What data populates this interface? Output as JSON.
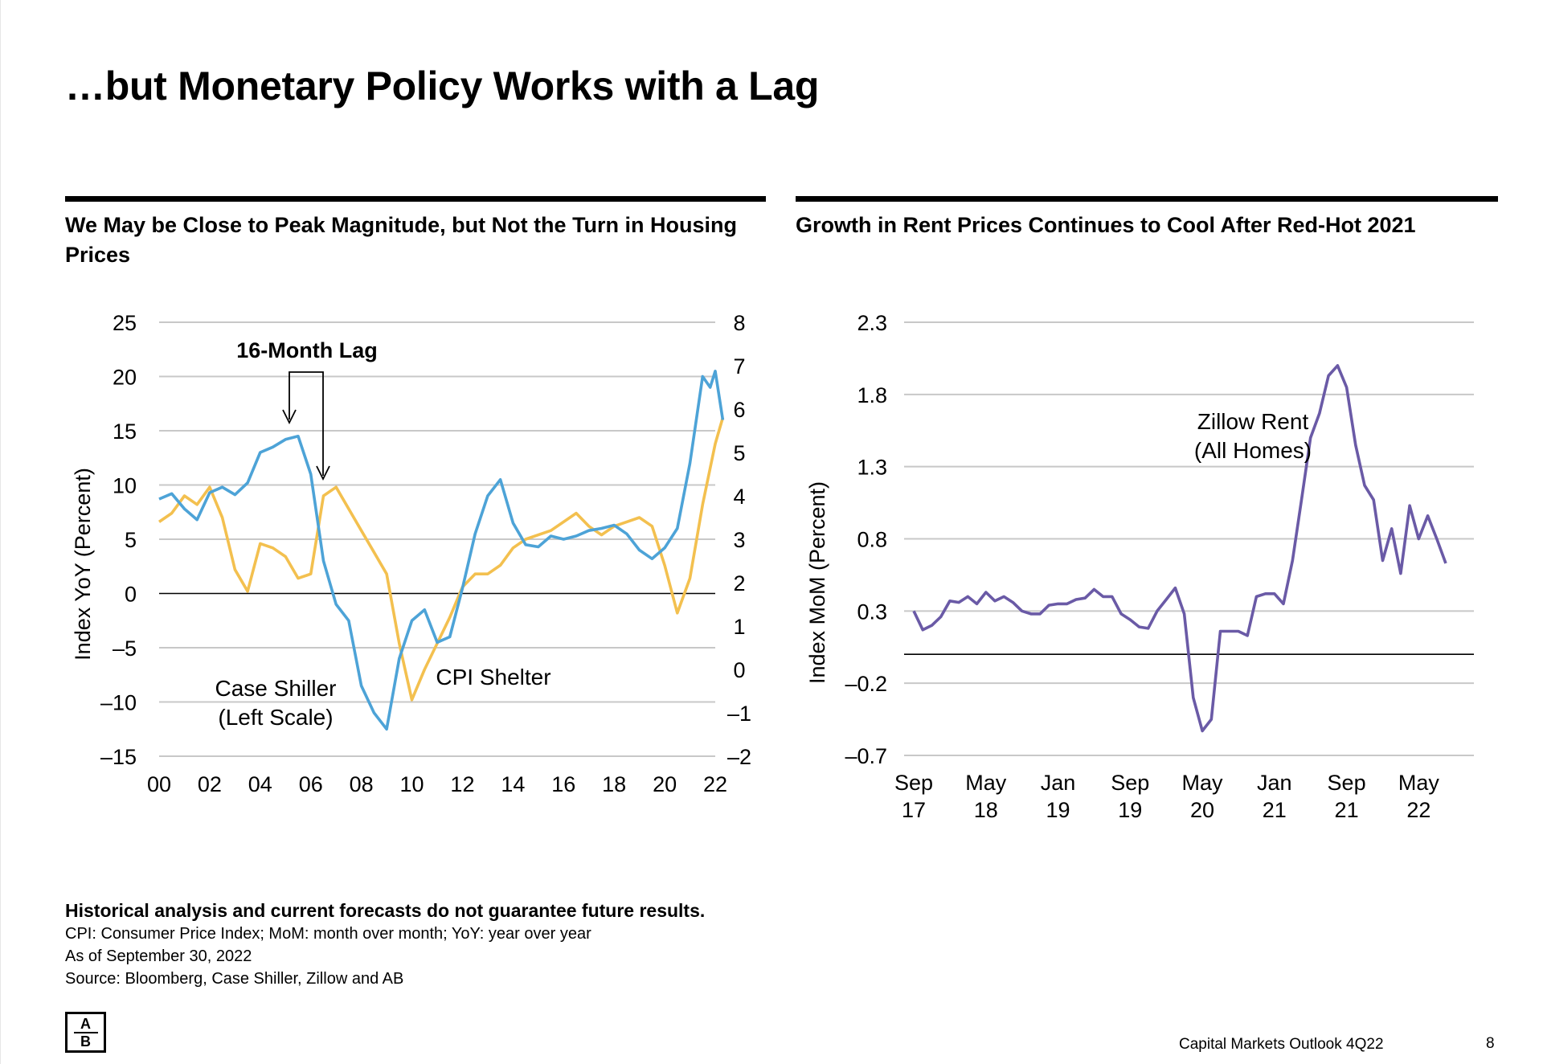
{
  "page": {
    "title": "…but Monetary Policy Works with a Lag",
    "page_number": "8",
    "outlook": "Capital Markets Outlook 4Q22",
    "logo_text": "AB"
  },
  "footer": {
    "disclaimer": "Historical analysis and current forecasts do not guarantee future results.",
    "abbrev": "CPI: Consumer Price Index; MoM: month over month; YoY: year over year",
    "asof": "As of September 30, 2022",
    "source": "Source: Bloomberg, Case Shiller, Zillow and AB"
  },
  "colors": {
    "case_shiller": "#4da3d7",
    "cpi_shelter": "#f3c04f",
    "zillow": "#6a5aa6",
    "grid": "#c8c8c8"
  },
  "chart_data": [
    {
      "type": "line",
      "title": "We May be Close to Peak Magnitude, but Not the Turn in Housing Prices",
      "ylabel": "Index YoY (Percent)",
      "ylim": [
        -15,
        25
      ],
      "yticks": [
        25,
        20,
        15,
        10,
        5,
        0,
        -5,
        -10,
        -15
      ],
      "ytick_labels": [
        "25",
        "20",
        "15",
        "10",
        "5",
        "0",
        "–5",
        "–10",
        "–15"
      ],
      "y2lim": [
        -2,
        8
      ],
      "y2ticks": [
        8,
        7,
        6,
        5,
        4,
        3,
        2,
        1,
        0,
        -1,
        -2
      ],
      "y2tick_labels": [
        "8",
        "7",
        "6",
        "5",
        "4",
        "3",
        "2",
        "1",
        "0",
        "–1",
        "–2"
      ],
      "xlim": [
        2000,
        2022
      ],
      "xticks": [
        2000,
        2002,
        2004,
        2006,
        2008,
        2010,
        2012,
        2014,
        2016,
        2018,
        2020,
        2022
      ],
      "xtick_labels": [
        "00",
        "02",
        "04",
        "06",
        "08",
        "10",
        "12",
        "14",
        "16",
        "18",
        "20",
        "22"
      ],
      "annotation": "16-Month Lag",
      "series": [
        {
          "name": "Case Shiller",
          "label_lines": [
            "Case Shiller",
            "(Left Scale)"
          ],
          "axis": "left",
          "x": [
            2000,
            2000.5,
            2001,
            2001.5,
            2002,
            2002.5,
            2003,
            2003.5,
            2004,
            2004.5,
            2005,
            2005.5,
            2006,
            2006.5,
            2007,
            2007.5,
            2008,
            2008.5,
            2009,
            2009.5,
            2010,
            2010.5,
            2011,
            2011.5,
            2012,
            2012.5,
            2013,
            2013.5,
            2014,
            2014.5,
            2015,
            2015.5,
            2016,
            2016.5,
            2017,
            2017.5,
            2018,
            2018.5,
            2019,
            2019.5,
            2020,
            2020.5,
            2021,
            2021.5,
            2021.8,
            2022,
            2022.3
          ],
          "values": [
            8.7,
            9.2,
            7.8,
            6.8,
            9.3,
            9.8,
            9.1,
            10.2,
            13.0,
            13.5,
            14.2,
            14.5,
            11.0,
            3.0,
            -1.0,
            -2.5,
            -8.5,
            -11.0,
            -12.5,
            -6.0,
            -2.5,
            -1.5,
            -4.5,
            -4.0,
            0.5,
            5.5,
            9.0,
            10.5,
            6.5,
            4.5,
            4.3,
            5.3,
            5.0,
            5.3,
            5.8,
            6.0,
            6.3,
            5.5,
            4.0,
            3.2,
            4.2,
            6.0,
            12.0,
            20.0,
            19.0,
            20.5,
            16.0
          ]
        },
        {
          "name": "CPI Shelter",
          "label_lines": [
            "CPI Shelter"
          ],
          "axis": "right",
          "x": [
            2000,
            2000.5,
            2001,
            2001.5,
            2002,
            2002.5,
            2003,
            2003.5,
            2004,
            2004.5,
            2005,
            2005.5,
            2006,
            2006.5,
            2007,
            2007.5,
            2008,
            2008.5,
            2009,
            2009.5,
            2010,
            2010.5,
            2011,
            2011.5,
            2012,
            2012.5,
            2013,
            2013.5,
            2014,
            2014.5,
            2015,
            2015.5,
            2016,
            2016.5,
            2017,
            2017.5,
            2018,
            2018.5,
            2019,
            2019.5,
            2020,
            2020.5,
            2021,
            2021.5,
            2022,
            2022.3
          ],
          "values": [
            3.4,
            3.6,
            4.0,
            3.8,
            4.2,
            3.5,
            2.3,
            1.8,
            2.9,
            2.8,
            2.6,
            2.1,
            2.2,
            4.0,
            4.2,
            3.7,
            3.2,
            2.7,
            2.2,
            0.6,
            -0.7,
            0.0,
            0.6,
            1.2,
            1.9,
            2.2,
            2.2,
            2.4,
            2.8,
            3.0,
            3.1,
            3.2,
            3.4,
            3.6,
            3.3,
            3.1,
            3.3,
            3.4,
            3.5,
            3.3,
            2.4,
            1.3,
            2.1,
            3.8,
            5.2,
            5.8
          ]
        }
      ]
    },
    {
      "type": "line",
      "title": "Growth in Rent Prices Continues to Cool After Red-Hot 2021",
      "ylabel": "Index MoM (Percent)",
      "ylim": [
        -0.7,
        2.3
      ],
      "yticks": [
        2.3,
        1.8,
        1.3,
        0.8,
        0.3,
        -0.2,
        -0.7
      ],
      "ytick_labels": [
        "2.3",
        "1.8",
        "1.3",
        "0.8",
        "0.3",
        "–0.2",
        "–0.7"
      ],
      "xlim": [
        0,
        59
      ],
      "xticks": [
        0,
        8,
        16,
        24,
        32,
        40,
        48,
        56
      ],
      "xtick_labels": [
        [
          "Sep",
          "17"
        ],
        [
          "May",
          "18"
        ],
        [
          "Jan",
          "19"
        ],
        [
          "Sep",
          "19"
        ],
        [
          "May",
          "20"
        ],
        [
          "Jan",
          "21"
        ],
        [
          "Sep",
          "21"
        ],
        [
          "May",
          "22"
        ]
      ],
      "series": [
        {
          "name": "Zillow Rent",
          "label_lines": [
            "Zillow Rent",
            "(All Homes)"
          ],
          "x": [
            0,
            1,
            2,
            3,
            4,
            5,
            6,
            7,
            8,
            9,
            10,
            11,
            12,
            13,
            14,
            15,
            16,
            17,
            18,
            19,
            20,
            21,
            22,
            23,
            24,
            25,
            26,
            27,
            28,
            29,
            30,
            31,
            32,
            33,
            34,
            35,
            36,
            37,
            38,
            39,
            40,
            41,
            42,
            43,
            44,
            45,
            46,
            47,
            48,
            49,
            50,
            51,
            52,
            53,
            54,
            55,
            56,
            57,
            58,
            59
          ],
          "values": [
            0.3,
            0.17,
            0.2,
            0.26,
            0.37,
            0.36,
            0.4,
            0.35,
            0.43,
            0.37,
            0.4,
            0.36,
            0.3,
            0.28,
            0.28,
            0.34,
            0.35,
            0.35,
            0.38,
            0.39,
            0.45,
            0.4,
            0.4,
            0.28,
            0.24,
            0.19,
            0.18,
            0.3,
            0.38,
            0.46,
            0.28,
            -0.3,
            -0.53,
            -0.45,
            0.16,
            0.16,
            0.16,
            0.13,
            0.4,
            0.42,
            0.42,
            0.35,
            0.65,
            1.07,
            1.5,
            1.67,
            1.93,
            2.0,
            1.85,
            1.45,
            1.17,
            1.07,
            0.65,
            0.87,
            0.56,
            1.03,
            0.8,
            0.96,
            0.8,
            0.63
          ]
        }
      ]
    }
  ]
}
